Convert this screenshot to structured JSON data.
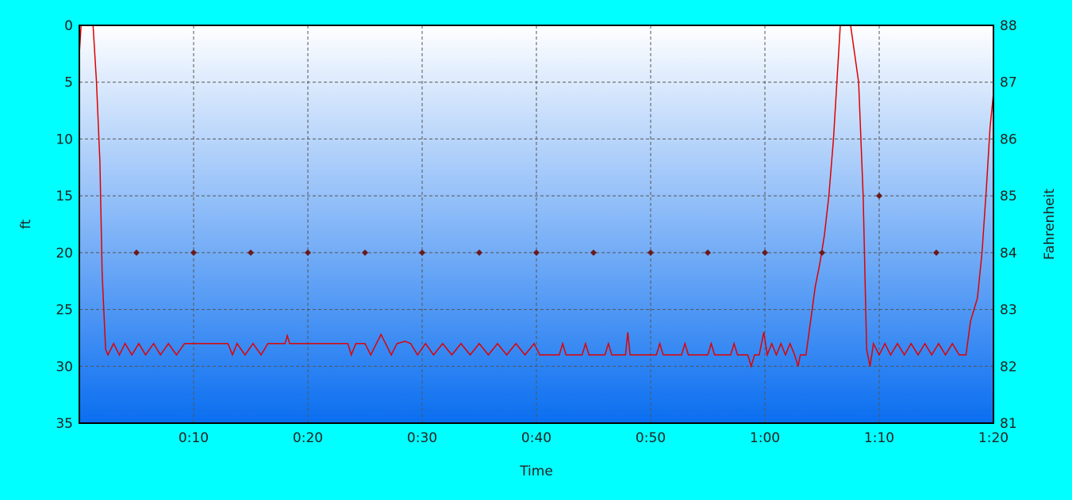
{
  "chart_data": {
    "type": "line",
    "title": "",
    "xlabel": "Time",
    "ylabel": "ft",
    "y2label": "Fahrenheit",
    "xlim": [
      0,
      80
    ],
    "ylim": [
      35,
      0
    ],
    "y2lim": [
      81,
      88
    ],
    "grid": true,
    "x_ticks": [
      {
        "value": 10,
        "label": "0:10"
      },
      {
        "value": 20,
        "label": "0:20"
      },
      {
        "value": 30,
        "label": "0:30"
      },
      {
        "value": 40,
        "label": "0:40"
      },
      {
        "value": 50,
        "label": "0:50"
      },
      {
        "value": 60,
        "label": "1:00"
      },
      {
        "value": 70,
        "label": "1:10"
      },
      {
        "value": 80,
        "label": "1:20"
      }
    ],
    "y_ticks": [
      "0",
      "5",
      "10",
      "15",
      "20",
      "25",
      "30",
      "35"
    ],
    "y2_ticks": [
      "88",
      "87",
      "86",
      "85",
      "84",
      "83",
      "82",
      "81"
    ],
    "colors": {
      "depth": "#e00000",
      "temperature": "#6a1a1a",
      "plot_top": "#ffffff",
      "plot_bottom": "#0a6ef0",
      "background": "#00ffff"
    },
    "series": [
      {
        "axis": "depth",
        "points": [
          [
            0,
            2.5
          ],
          [
            0.15,
            0
          ],
          [
            1.2,
            0
          ],
          [
            1.5,
            5
          ],
          [
            1.8,
            12
          ],
          [
            2.0,
            22
          ],
          [
            2.3,
            28.5
          ],
          [
            2.5,
            29
          ],
          [
            3,
            28
          ],
          [
            3.5,
            29
          ],
          [
            4,
            28
          ],
          [
            4.6,
            29
          ],
          [
            5.2,
            28
          ],
          [
            5.8,
            29
          ],
          [
            6.5,
            28
          ],
          [
            7.1,
            29
          ],
          [
            7.8,
            28
          ],
          [
            8.5,
            29
          ],
          [
            9.2,
            28
          ],
          [
            10,
            28
          ],
          [
            11,
            28
          ],
          [
            12,
            28
          ],
          [
            13,
            28
          ],
          [
            13.4,
            29
          ],
          [
            13.8,
            28
          ],
          [
            14.5,
            29
          ],
          [
            15.2,
            28
          ],
          [
            15.9,
            29
          ],
          [
            16.5,
            28
          ],
          [
            17,
            28
          ],
          [
            18,
            28
          ],
          [
            18.2,
            27.3
          ],
          [
            18.4,
            28
          ],
          [
            20,
            28
          ],
          [
            22,
            28
          ],
          [
            23.5,
            28
          ],
          [
            23.8,
            29
          ],
          [
            24.2,
            28
          ],
          [
            25,
            28
          ],
          [
            25.5,
            29
          ],
          [
            26,
            28
          ],
          [
            26.4,
            27.2
          ],
          [
            26.8,
            28
          ],
          [
            27.3,
            29
          ],
          [
            27.8,
            28
          ],
          [
            28.5,
            27.8
          ],
          [
            29,
            28
          ],
          [
            29.6,
            29
          ],
          [
            30.3,
            28
          ],
          [
            31,
            29
          ],
          [
            31.8,
            28
          ],
          [
            32.6,
            29
          ],
          [
            33.4,
            28
          ],
          [
            34.2,
            29
          ],
          [
            35,
            28
          ],
          [
            35.8,
            29
          ],
          [
            36.6,
            28
          ],
          [
            37.4,
            29
          ],
          [
            38.2,
            28
          ],
          [
            39,
            29
          ],
          [
            39.8,
            28
          ],
          [
            40.3,
            29
          ],
          [
            41,
            29
          ],
          [
            42,
            29
          ],
          [
            42.3,
            28
          ],
          [
            42.6,
            29
          ],
          [
            44,
            29
          ],
          [
            44.3,
            28
          ],
          [
            44.6,
            29
          ],
          [
            46,
            29
          ],
          [
            46.3,
            28
          ],
          [
            46.6,
            29
          ],
          [
            47,
            29
          ],
          [
            47.8,
            29
          ],
          [
            48,
            27
          ],
          [
            48.2,
            29
          ],
          [
            50,
            29
          ],
          [
            50.5,
            29
          ],
          [
            50.8,
            28
          ],
          [
            51.1,
            29
          ],
          [
            52,
            29
          ],
          [
            52.7,
            29
          ],
          [
            53,
            28
          ],
          [
            53.3,
            29
          ],
          [
            55,
            29
          ],
          [
            55.3,
            28
          ],
          [
            55.6,
            29
          ],
          [
            57,
            29
          ],
          [
            57.3,
            28
          ],
          [
            57.6,
            29
          ],
          [
            58.5,
            29
          ],
          [
            58.8,
            30
          ],
          [
            59.1,
            29
          ],
          [
            59.5,
            29
          ],
          [
            59.9,
            27
          ],
          [
            60.2,
            29
          ],
          [
            60.6,
            28
          ],
          [
            61,
            29
          ],
          [
            61.4,
            28
          ],
          [
            61.8,
            29
          ],
          [
            62.2,
            28
          ],
          [
            62.6,
            29
          ],
          [
            62.9,
            30
          ],
          [
            63.1,
            29
          ],
          [
            63.6,
            29
          ],
          [
            64,
            26
          ],
          [
            64.4,
            23
          ],
          [
            64.8,
            21
          ],
          [
            65.2,
            18.5
          ],
          [
            65.6,
            15
          ],
          [
            66,
            10
          ],
          [
            66.3,
            5
          ],
          [
            66.6,
            0
          ],
          [
            67.5,
            0
          ],
          [
            68.2,
            5
          ],
          [
            68.6,
            15
          ],
          [
            68.9,
            28.5
          ],
          [
            69.2,
            30
          ],
          [
            69.5,
            28
          ],
          [
            70,
            29
          ],
          [
            70.5,
            28
          ],
          [
            71,
            29
          ],
          [
            71.6,
            28
          ],
          [
            72.2,
            29
          ],
          [
            72.8,
            28
          ],
          [
            73.4,
            29
          ],
          [
            74,
            28
          ],
          [
            74.6,
            29
          ],
          [
            75.2,
            28
          ],
          [
            75.8,
            29
          ],
          [
            76.4,
            28
          ],
          [
            77,
            29
          ],
          [
            77.6,
            29
          ],
          [
            78,
            26
          ],
          [
            78.6,
            24
          ],
          [
            79,
            20
          ],
          [
            79.4,
            14
          ],
          [
            79.7,
            9
          ],
          [
            80,
            6
          ]
        ]
      },
      {
        "axis": "temperature",
        "style": "markers",
        "x": [
          5,
          10,
          15,
          20,
          25,
          30,
          35,
          40,
          45,
          50,
          55,
          60,
          65,
          70,
          75
        ],
        "y": [
          84,
          84,
          84,
          84,
          84,
          84,
          84,
          84,
          84,
          84,
          84,
          84,
          84,
          85,
          84
        ]
      }
    ]
  }
}
